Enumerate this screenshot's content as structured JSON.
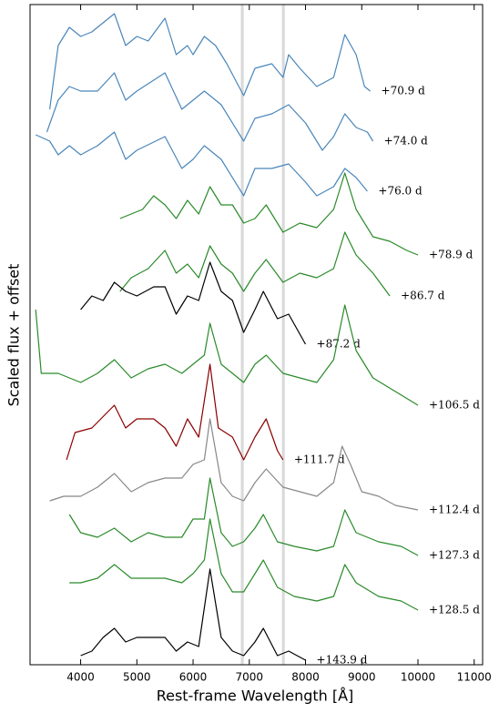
{
  "chart_data": {
    "type": "line",
    "xlabel": "Rest-frame Wavelength [Å]",
    "ylabel": "Scaled flux + offset",
    "xlim": [
      3100,
      11150
    ],
    "ylim": [
      0,
      725
    ],
    "xticks": [
      4000,
      5000,
      6000,
      7000,
      8000,
      9000,
      10000,
      11000
    ],
    "shaded_bands": [
      [
        6850,
        6900
      ],
      [
        7580,
        7630
      ]
    ],
    "series": [
      {
        "name": "+70.9 d",
        "color": "#4a86b9",
        "x": [
          3450,
          3600,
          3800,
          4000,
          4200,
          4600,
          4800,
          5000,
          5200,
          5500,
          5700,
          5900,
          6000,
          6200,
          6400,
          6600,
          6900,
          7100,
          7400,
          7600,
          7700,
          7900,
          8200,
          8500,
          8700,
          8900,
          9050,
          9150
        ],
        "values": [
          610,
          680,
          700,
          690,
          695,
          715,
          680,
          690,
          685,
          710,
          670,
          680,
          670,
          690,
          680,
          660,
          625,
          655,
          660,
          645,
          670,
          655,
          635,
          645,
          692,
          670,
          635,
          630
        ]
      },
      {
        "name": "+74.0 d",
        "color": "#4a86b9",
        "x": [
          3400,
          3600,
          3800,
          4000,
          4300,
          4600,
          4800,
          5000,
          5500,
          5800,
          6000,
          6200,
          6500,
          6900,
          7100,
          7400,
          7700,
          8000,
          8300,
          8500,
          8700,
          8900,
          9100,
          9200
        ],
        "values": [
          585,
          620,
          635,
          630,
          630,
          650,
          620,
          630,
          650,
          610,
          620,
          630,
          615,
          575,
          600,
          605,
          615,
          595,
          565,
          580,
          605,
          590,
          585,
          575
        ]
      },
      {
        "name": "+76.0 d",
        "color": "#4a86b9",
        "x": [
          3200,
          3450,
          3600,
          3800,
          4000,
          4300,
          4600,
          4800,
          5000,
          5500,
          5800,
          6000,
          6200,
          6500,
          6900,
          7100,
          7400,
          7700,
          8000,
          8200,
          8500,
          8700,
          8900,
          9100
        ],
        "values": [
          582,
          575,
          560,
          570,
          560,
          570,
          585,
          555,
          565,
          580,
          545,
          555,
          570,
          555,
          515,
          545,
          545,
          550,
          530,
          515,
          525,
          545,
          535,
          520
        ]
      },
      {
        "name": "+78.9 d",
        "color": "#2a8a2a",
        "x": [
          4700,
          4900,
          5100,
          5300,
          5500,
          5700,
          5900,
          6100,
          6300,
          6500,
          6700,
          6900,
          7100,
          7300,
          7600,
          7900,
          8200,
          8500,
          8700,
          8900,
          9200,
          9500,
          9800,
          10000
        ],
        "values": [
          490,
          495,
          500,
          515,
          505,
          490,
          510,
          495,
          525,
          505,
          505,
          485,
          490,
          505,
          475,
          485,
          480,
          500,
          540,
          500,
          470,
          465,
          455,
          450
        ]
      },
      {
        "name": "+86.7 d",
        "color": "#2a8a2a",
        "x": [
          4700,
          4900,
          5200,
          5500,
          5700,
          5900,
          6100,
          6300,
          6500,
          6700,
          6900,
          7100,
          7300,
          7600,
          7900,
          8200,
          8500,
          8700,
          8900,
          9200,
          9500
        ],
        "values": [
          410,
          425,
          435,
          455,
          430,
          440,
          425,
          460,
          440,
          430,
          410,
          430,
          445,
          420,
          430,
          425,
          435,
          475,
          450,
          430,
          405
        ]
      },
      {
        "name": "+87.2 d",
        "color": "#000000",
        "x": [
          4000,
          4200,
          4400,
          4600,
          4800,
          5000,
          5300,
          5500,
          5700,
          5900,
          6100,
          6300,
          6500,
          6700,
          6900,
          7100,
          7250,
          7500,
          7700,
          8000
        ],
        "values": [
          390,
          405,
          400,
          420,
          410,
          405,
          415,
          415,
          385,
          405,
          400,
          442,
          410,
          400,
          365,
          390,
          410,
          380,
          385,
          352
        ]
      },
      {
        "name": "+106.5 d",
        "color": "#2a8a2a",
        "x": [
          3200,
          3300,
          3600,
          4000,
          4300,
          4600,
          4900,
          5200,
          5500,
          5800,
          6000,
          6200,
          6300,
          6500,
          6700,
          6900,
          7100,
          7300,
          7600,
          7900,
          8200,
          8500,
          8700,
          8900,
          9200,
          9600,
          10000
        ],
        "values": [
          390,
          320,
          320,
          310,
          320,
          335,
          315,
          325,
          330,
          320,
          330,
          340,
          375,
          330,
          320,
          310,
          330,
          340,
          320,
          315,
          310,
          335,
          395,
          345,
          315,
          300,
          285
        ]
      },
      {
        "name": "+111.7 d",
        "color": "#8b0000",
        "x": [
          3750,
          3900,
          4200,
          4600,
          4800,
          5000,
          5300,
          5500,
          5700,
          5900,
          6100,
          6300,
          6450,
          6700,
          6900,
          7100,
          7300,
          7500,
          7600
        ],
        "values": [
          225,
          255,
          260,
          285,
          260,
          270,
          270,
          260,
          240,
          270,
          250,
          330,
          260,
          250,
          225,
          250,
          270,
          235,
          225
        ]
      },
      {
        "name": "+112.4 d",
        "color": "#888888",
        "x": [
          3450,
          3700,
          4000,
          4300,
          4600,
          4900,
          5200,
          5500,
          5800,
          6000,
          6200,
          6300,
          6500,
          6700,
          6900,
          7100,
          7300,
          7600,
          7900,
          8200,
          8500,
          8650,
          8800,
          9000,
          9300,
          9600,
          10000
        ],
        "values": [
          180,
          185,
          185,
          195,
          210,
          190,
          200,
          205,
          205,
          220,
          225,
          270,
          200,
          185,
          180,
          200,
          215,
          195,
          190,
          185,
          200,
          240,
          220,
          190,
          185,
          175,
          170
        ]
      },
      {
        "name": "+127.3 d",
        "color": "#2a8a2a",
        "x": [
          3800,
          4000,
          4300,
          4600,
          4900,
          5200,
          5500,
          5800,
          6000,
          6200,
          6300,
          6500,
          6700,
          6900,
          7100,
          7250,
          7500,
          7800,
          8200,
          8500,
          8700,
          8900,
          9300,
          9700,
          10000
        ],
        "values": [
          165,
          145,
          140,
          150,
          135,
          145,
          140,
          140,
          160,
          160,
          205,
          145,
          130,
          135,
          150,
          165,
          135,
          130,
          125,
          130,
          170,
          145,
          135,
          130,
          120
        ]
      },
      {
        "name": "+128.5 d",
        "color": "#2a8a2a",
        "x": [
          3800,
          4000,
          4300,
          4600,
          4900,
          5200,
          5500,
          5800,
          6000,
          6200,
          6300,
          6500,
          6700,
          6900,
          7100,
          7250,
          7500,
          7800,
          8200,
          8500,
          8700,
          8900,
          9300,
          9700,
          10000
        ],
        "values": [
          90,
          90,
          95,
          110,
          95,
          95,
          95,
          90,
          100,
          115,
          160,
          100,
          80,
          80,
          100,
          115,
          85,
          75,
          70,
          75,
          110,
          90,
          75,
          70,
          60
        ]
      },
      {
        "name": "+143.9 d",
        "color": "#000000",
        "x": [
          4000,
          4200,
          4400,
          4600,
          4800,
          5000,
          5300,
          5500,
          5700,
          5900,
          6100,
          6300,
          6500,
          6700,
          6900,
          7100,
          7250,
          7500,
          7700,
          8000
        ],
        "values": [
          10,
          15,
          30,
          40,
          25,
          30,
          30,
          30,
          15,
          25,
          20,
          105,
          30,
          15,
          10,
          25,
          40,
          10,
          15,
          5
        ]
      }
    ]
  }
}
